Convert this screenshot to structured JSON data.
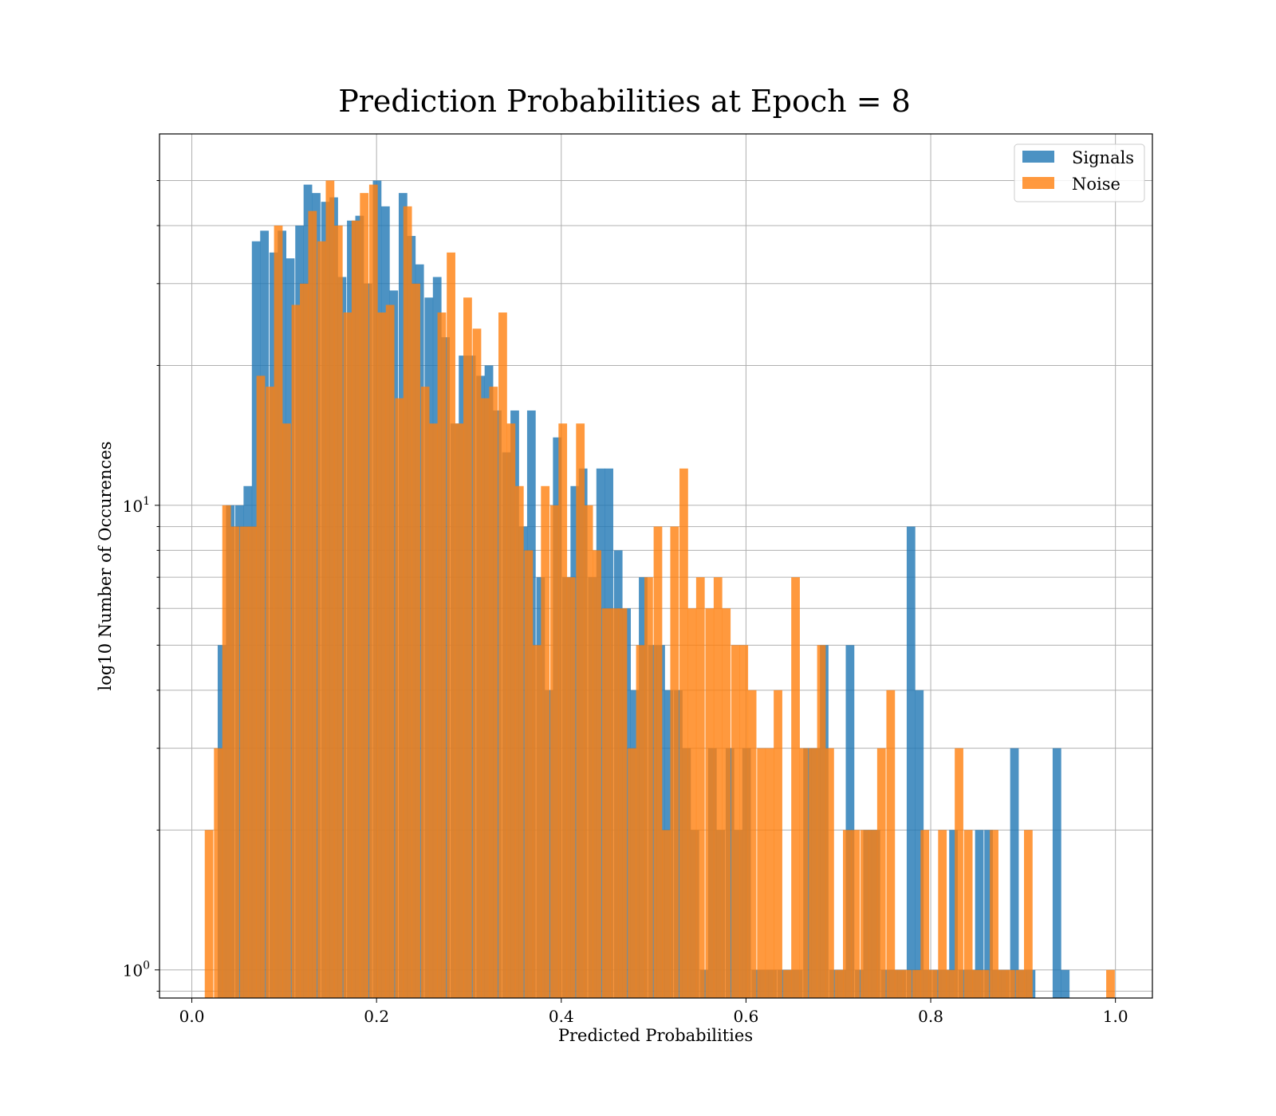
{
  "chart_data": {
    "type": "bar",
    "title": "Prediction Probabilities at Epoch = 8",
    "xlabel": "Predicted Probabilities",
    "ylabel": "log10 Number of Occurences",
    "xlim": [
      -0.035,
      1.04
    ],
    "ylim": [
      0.87,
      63
    ],
    "yscale": "log",
    "grid": true,
    "legend_position": "top-right",
    "x_ticks": [
      0.0,
      0.2,
      0.4,
      0.6,
      0.8,
      1.0
    ],
    "x_tick_labels": [
      "0.0",
      "0.2",
      "0.4",
      "0.6",
      "0.8",
      "1.0"
    ],
    "y_ticks": [
      1,
      10
    ],
    "y_tick_labels": [
      {
        "base": "10",
        "exp": "0"
      },
      {
        "base": "10",
        "exp": "1"
      }
    ],
    "y_minor_ticks": [
      0.9,
      2,
      3,
      4,
      5,
      6,
      7,
      8,
      9,
      20,
      30,
      40,
      50
    ],
    "series": [
      {
        "name": "Signals",
        "color": "#1f77b4",
        "opacity": 0.8,
        "bin_width": 0.0093,
        "bins": [
          [
            0.028,
            5
          ],
          [
            0.037,
            10
          ],
          [
            0.047,
            10
          ],
          [
            0.056,
            11
          ],
          [
            0.065,
            37
          ],
          [
            0.074,
            39
          ],
          [
            0.084,
            35
          ],
          [
            0.093,
            39
          ],
          [
            0.102,
            34
          ],
          [
            0.112,
            40
          ],
          [
            0.121,
            49
          ],
          [
            0.13,
            47
          ],
          [
            0.14,
            45
          ],
          [
            0.149,
            46
          ],
          [
            0.158,
            31
          ],
          [
            0.168,
            41
          ],
          [
            0.177,
            42
          ],
          [
            0.186,
            30
          ],
          [
            0.196,
            50
          ],
          [
            0.205,
            44
          ],
          [
            0.214,
            29
          ],
          [
            0.224,
            47
          ],
          [
            0.233,
            38
          ],
          [
            0.242,
            33
          ],
          [
            0.252,
            28
          ],
          [
            0.261,
            31
          ],
          [
            0.27,
            23
          ],
          [
            0.28,
            15
          ],
          [
            0.289,
            21
          ],
          [
            0.298,
            21
          ],
          [
            0.308,
            19
          ],
          [
            0.317,
            20
          ],
          [
            0.326,
            16
          ],
          [
            0.336,
            13
          ],
          [
            0.345,
            16
          ],
          [
            0.354,
            9
          ],
          [
            0.363,
            16
          ],
          [
            0.373,
            7
          ],
          [
            0.382,
            4
          ],
          [
            0.391,
            14
          ],
          [
            0.401,
            7
          ],
          [
            0.41,
            11
          ],
          [
            0.419,
            12
          ],
          [
            0.429,
            7
          ],
          [
            0.438,
            12
          ],
          [
            0.447,
            12
          ],
          [
            0.457,
            8
          ],
          [
            0.466,
            6
          ],
          [
            0.475,
            4
          ],
          [
            0.484,
            7
          ],
          [
            0.494,
            5
          ],
          [
            0.503,
            5
          ],
          [
            0.512,
            4
          ],
          [
            0.522,
            4
          ],
          [
            0.531,
            3
          ],
          [
            0.54,
            2
          ],
          [
            0.55,
            1
          ],
          [
            0.559,
            3
          ],
          [
            0.568,
            2
          ],
          [
            0.578,
            3
          ],
          [
            0.587,
            2
          ],
          [
            0.596,
            3
          ],
          [
            0.606,
            1
          ],
          [
            0.615,
            1
          ],
          [
            0.624,
            1
          ],
          [
            0.634,
            1
          ],
          [
            0.643,
            1
          ],
          [
            0.652,
            1
          ],
          [
            0.662,
            3
          ],
          [
            0.671,
            3
          ],
          [
            0.68,
            5
          ],
          [
            0.69,
            1
          ],
          [
            0.699,
            1
          ],
          [
            0.708,
            5
          ],
          [
            0.718,
            1
          ],
          [
            0.727,
            2
          ],
          [
            0.736,
            2
          ],
          [
            0.746,
            1
          ],
          [
            0.755,
            1
          ],
          [
            0.764,
            1
          ],
          [
            0.774,
            9
          ],
          [
            0.783,
            4
          ],
          [
            0.792,
            1
          ],
          [
            0.802,
            1
          ],
          [
            0.811,
            1
          ],
          [
            0.82,
            2
          ],
          [
            0.83,
            1
          ],
          [
            0.839,
            1
          ],
          [
            0.848,
            2
          ],
          [
            0.858,
            2
          ],
          [
            0.867,
            1
          ],
          [
            0.876,
            1
          ],
          [
            0.886,
            3
          ],
          [
            0.895,
            1
          ],
          [
            0.904,
            1
          ],
          [
            0.932,
            3
          ],
          [
            0.941,
            1
          ]
        ]
      },
      {
        "name": "Noise",
        "color": "#ff7f0e",
        "opacity": 0.8,
        "bin_width": 0.0093,
        "bins": [
          [
            0.014,
            2
          ],
          [
            0.024,
            3
          ],
          [
            0.033,
            10
          ],
          [
            0.042,
            9
          ],
          [
            0.052,
            9
          ],
          [
            0.061,
            9
          ],
          [
            0.07,
            19
          ],
          [
            0.08,
            18
          ],
          [
            0.089,
            40
          ],
          [
            0.098,
            15
          ],
          [
            0.108,
            27
          ],
          [
            0.117,
            30
          ],
          [
            0.126,
            43
          ],
          [
            0.136,
            37
          ],
          [
            0.145,
            50
          ],
          [
            0.154,
            40
          ],
          [
            0.164,
            26
          ],
          [
            0.173,
            41
          ],
          [
            0.182,
            47
          ],
          [
            0.192,
            49
          ],
          [
            0.201,
            26
          ],
          [
            0.21,
            27
          ],
          [
            0.22,
            17
          ],
          [
            0.229,
            44
          ],
          [
            0.238,
            30
          ],
          [
            0.248,
            18
          ],
          [
            0.257,
            15
          ],
          [
            0.266,
            26
          ],
          [
            0.276,
            35
          ],
          [
            0.285,
            15
          ],
          [
            0.294,
            28
          ],
          [
            0.304,
            24
          ],
          [
            0.313,
            17
          ],
          [
            0.322,
            18
          ],
          [
            0.332,
            26
          ],
          [
            0.341,
            15
          ],
          [
            0.35,
            11
          ],
          [
            0.36,
            8
          ],
          [
            0.369,
            5
          ],
          [
            0.378,
            11
          ],
          [
            0.388,
            10
          ],
          [
            0.397,
            15
          ],
          [
            0.406,
            7
          ],
          [
            0.416,
            15
          ],
          [
            0.425,
            10
          ],
          [
            0.434,
            8
          ],
          [
            0.444,
            6
          ],
          [
            0.453,
            6
          ],
          [
            0.462,
            6
          ],
          [
            0.472,
            3
          ],
          [
            0.481,
            5
          ],
          [
            0.49,
            7
          ],
          [
            0.5,
            9
          ],
          [
            0.509,
            2
          ],
          [
            0.518,
            9
          ],
          [
            0.528,
            12
          ],
          [
            0.537,
            6
          ],
          [
            0.546,
            7
          ],
          [
            0.556,
            6
          ],
          [
            0.565,
            7
          ],
          [
            0.574,
            6
          ],
          [
            0.584,
            5
          ],
          [
            0.593,
            5
          ],
          [
            0.602,
            4
          ],
          [
            0.612,
            3
          ],
          [
            0.621,
            3
          ],
          [
            0.63,
            4
          ],
          [
            0.64,
            1
          ],
          [
            0.649,
            7
          ],
          [
            0.658,
            3
          ],
          [
            0.668,
            3
          ],
          [
            0.677,
            5
          ],
          [
            0.686,
            3
          ],
          [
            0.696,
            1
          ],
          [
            0.705,
            2
          ],
          [
            0.714,
            2
          ],
          [
            0.724,
            2
          ],
          [
            0.733,
            2
          ],
          [
            0.742,
            3
          ],
          [
            0.752,
            4
          ],
          [
            0.761,
            1
          ],
          [
            0.77,
            1
          ],
          [
            0.78,
            1
          ],
          [
            0.789,
            2
          ],
          [
            0.798,
            1
          ],
          [
            0.808,
            2
          ],
          [
            0.817,
            1
          ],
          [
            0.826,
            3
          ],
          [
            0.836,
            2
          ],
          [
            0.845,
            1
          ],
          [
            0.854,
            1
          ],
          [
            0.864,
            2
          ],
          [
            0.873,
            1
          ],
          [
            0.882,
            1
          ],
          [
            0.892,
            1
          ],
          [
            0.901,
            2
          ],
          [
            0.99,
            1
          ]
        ]
      }
    ]
  }
}
